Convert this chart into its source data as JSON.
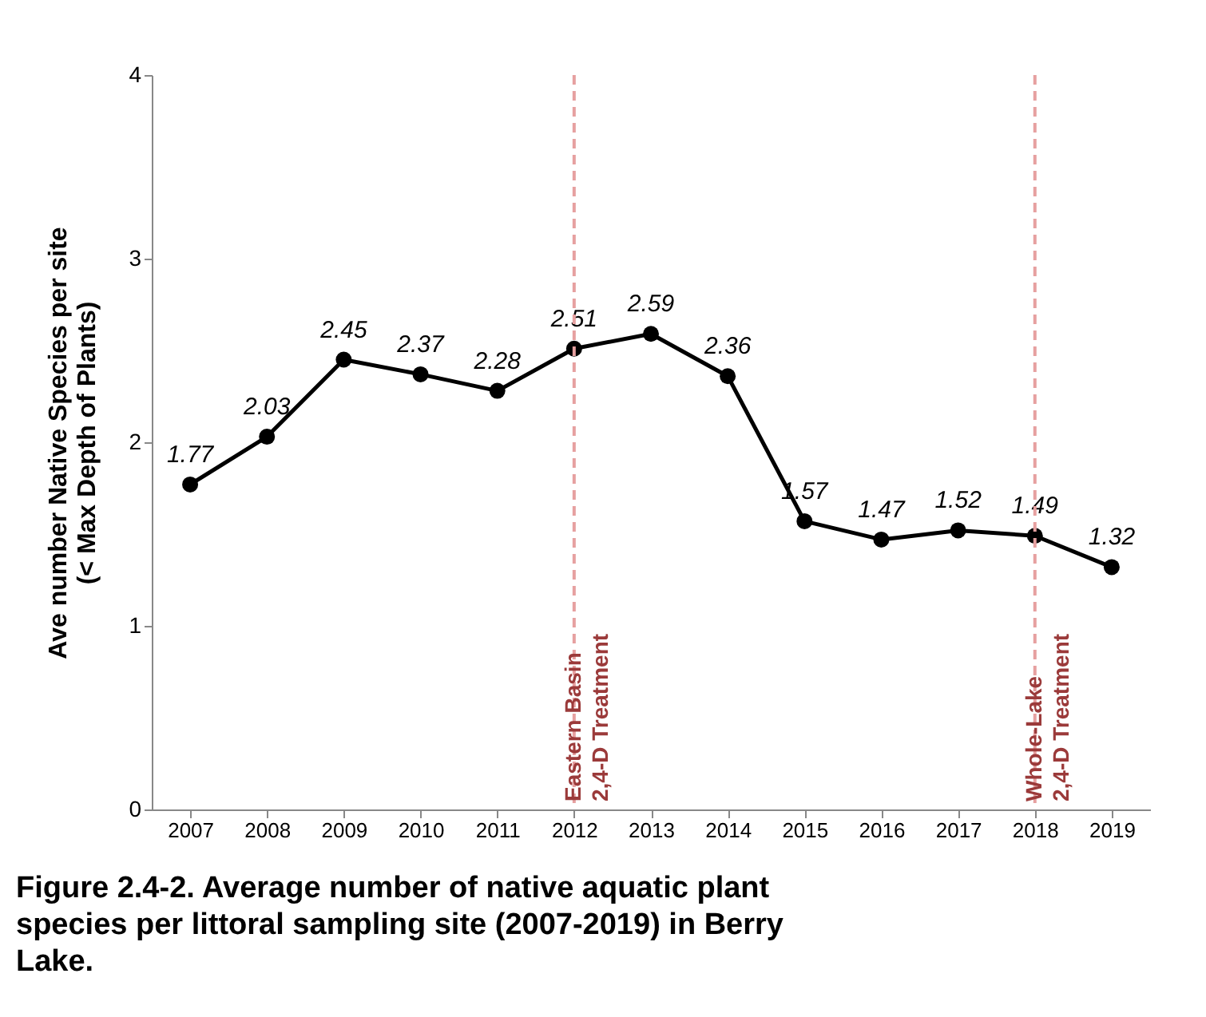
{
  "chart_data": {
    "type": "line",
    "title": "Figure 2.4-2. Average number of native aquatic plant species per littoral sampling site (2007-2019) in Berry Lake.",
    "ylabel": "Ave number Native Species per site\n(< Max Depth of Plants)",
    "categories": [
      "2007",
      "2008",
      "2009",
      "2010",
      "2011",
      "2012",
      "2013",
      "2014",
      "2015",
      "2016",
      "2017",
      "2018",
      "2019"
    ],
    "series": [
      {
        "color": "#000000",
        "values": [
          1.77,
          2.03,
          2.45,
          2.37,
          2.28,
          2.51,
          2.59,
          2.36,
          1.57,
          1.47,
          1.52,
          1.49,
          1.32
        ]
      }
    ],
    "ylim": [
      0,
      4
    ],
    "yticks": [
      0,
      1,
      2,
      3,
      4
    ],
    "grid": false,
    "marker": "circle",
    "line_style": "solid",
    "data_labels": true,
    "ref_lines": [
      {
        "axis": "x",
        "value": "2012",
        "label": "Eastern Basin\n2,4-D Treatment",
        "color": "#e6a0a0",
        "line_style": "dashed"
      },
      {
        "axis": "x",
        "value": "2018",
        "label": "Whole-Lake\n2,4-D Treatment",
        "color": "#e6a0a0",
        "line_style": "dashed"
      }
    ]
  }
}
